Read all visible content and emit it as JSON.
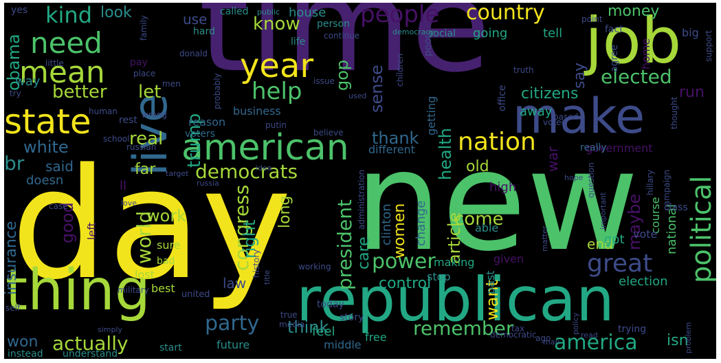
{
  "colors": {
    "background": "#000000",
    "yellow": "#f2e41c",
    "lime": "#a6d83a",
    "green": "#4cc26a",
    "teal": "#22a884",
    "cyan": "#2a8e8c",
    "blue": "#31688e",
    "indigo": "#3e4b89",
    "purple": "#46216f",
    "violet": "#471166"
  },
  "words": [
    {
      "text": "time",
      "color": "purple"
    },
    {
      "text": "new",
      "color": "green"
    },
    {
      "text": "day",
      "color": "yellow"
    },
    {
      "text": "republican",
      "color": "teal"
    },
    {
      "text": "job",
      "color": "lime"
    },
    {
      "text": "live",
      "color": "blue"
    },
    {
      "text": "make",
      "color": "indigo"
    },
    {
      "text": "thing",
      "color": "lime"
    },
    {
      "text": "american",
      "color": "green"
    },
    {
      "text": "state",
      "color": "yellow"
    },
    {
      "text": "mean",
      "color": "lime"
    },
    {
      "text": "need",
      "color": "green"
    },
    {
      "text": "year",
      "color": "yellow"
    },
    {
      "text": "people",
      "color": "violet"
    },
    {
      "text": "country",
      "color": "yellow"
    },
    {
      "text": "kind",
      "color": "teal"
    },
    {
      "text": "help",
      "color": "green"
    },
    {
      "text": "nation",
      "color": "yellow"
    },
    {
      "text": "elected",
      "color": "green"
    },
    {
      "text": "political",
      "color": "green"
    },
    {
      "text": "great",
      "color": "indigo"
    },
    {
      "text": "power",
      "color": "green"
    },
    {
      "text": "remember",
      "color": "green"
    },
    {
      "text": "america",
      "color": "teal"
    },
    {
      "text": "party",
      "color": "blue"
    },
    {
      "text": "actually",
      "color": "lime"
    },
    {
      "text": "democrats",
      "color": "lime"
    },
    {
      "text": "congress",
      "color": "lime"
    },
    {
      "text": "president",
      "color": "green"
    },
    {
      "text": "world",
      "color": "lime"
    },
    {
      "text": "work",
      "color": "lime"
    },
    {
      "text": "trump",
      "color": "teal"
    },
    {
      "text": "better",
      "color": "lime"
    },
    {
      "text": "let",
      "color": "lime"
    },
    {
      "text": "real",
      "color": "lime"
    },
    {
      "text": "white",
      "color": "blue"
    },
    {
      "text": "br",
      "color": "cyan"
    },
    {
      "text": "obama",
      "color": "teal"
    },
    {
      "text": "know",
      "color": "lime"
    },
    {
      "text": "look",
      "color": "cyan"
    },
    {
      "text": "use",
      "color": "indigo"
    },
    {
      "text": "gop",
      "color": "green"
    },
    {
      "text": "sense",
      "color": "indigo"
    },
    {
      "text": "thank",
      "color": "blue"
    },
    {
      "text": "health",
      "color": "teal"
    },
    {
      "text": "citizens",
      "color": "teal"
    },
    {
      "text": "say",
      "color": "indigo"
    },
    {
      "text": "money",
      "color": "green"
    },
    {
      "text": "going",
      "color": "teal"
    },
    {
      "text": "tell",
      "color": "teal"
    },
    {
      "text": "run",
      "color": "violet"
    },
    {
      "text": "away",
      "color": "teal"
    },
    {
      "text": "government",
      "color": "violet"
    },
    {
      "text": "insurance",
      "color": "blue"
    },
    {
      "text": "good",
      "color": "violet"
    },
    {
      "text": "right",
      "color": "teal"
    },
    {
      "text": "care",
      "color": "teal"
    },
    {
      "text": "article",
      "color": "lime"
    },
    {
      "text": "women",
      "color": "yellow"
    },
    {
      "text": "come",
      "color": "lime"
    },
    {
      "text": "control",
      "color": "teal"
    },
    {
      "text": "think",
      "color": "cyan"
    },
    {
      "text": "want",
      "color": "yellow"
    },
    {
      "text": "maybe",
      "color": "violet"
    },
    {
      "text": "end",
      "color": "lime"
    },
    {
      "text": "election",
      "color": "teal"
    },
    {
      "text": "isn",
      "color": "teal"
    },
    {
      "text": "law",
      "color": "indigo"
    },
    {
      "text": "won",
      "color": "blue"
    },
    {
      "text": "long",
      "color": "lime"
    },
    {
      "text": "old",
      "color": "lime"
    },
    {
      "text": "far",
      "color": "lime"
    },
    {
      "text": "said",
      "color": "blue"
    },
    {
      "text": "war",
      "color": "violet"
    },
    {
      "text": "high",
      "color": "violet"
    },
    {
      "text": "clinton",
      "color": "blue"
    },
    {
      "text": "change",
      "color": "blue"
    },
    {
      "text": "feel",
      "color": "teal"
    },
    {
      "text": "free",
      "color": "teal"
    },
    {
      "text": "future",
      "color": "cyan"
    },
    {
      "text": "middle",
      "color": "blue"
    },
    {
      "text": "start",
      "color": "cyan"
    },
    {
      "text": "understand",
      "color": "cyan"
    },
    {
      "text": "instead",
      "color": "cyan"
    },
    {
      "text": "lost",
      "color": "lime"
    },
    {
      "text": "best",
      "color": "lime"
    },
    {
      "text": "sure",
      "color": "lime"
    },
    {
      "text": "bad",
      "color": "lime"
    },
    {
      "text": "stop",
      "color": "cyan"
    },
    {
      "text": "past",
      "color": "cyan"
    },
    {
      "text": "making",
      "color": "teal"
    },
    {
      "text": "given",
      "color": "violet"
    },
    {
      "text": "got",
      "color": "teal"
    },
    {
      "text": "national",
      "color": "green"
    },
    {
      "text": "course",
      "color": "green"
    },
    {
      "text": "vote",
      "color": "indigo"
    },
    {
      "text": "class",
      "color": "indigo"
    },
    {
      "text": "able",
      "color": "cyan"
    },
    {
      "text": "getting",
      "color": "blue"
    },
    {
      "text": "different",
      "color": "blue"
    },
    {
      "text": "really",
      "color": "blue"
    },
    {
      "text": "business",
      "color": "blue"
    },
    {
      "text": "reason",
      "color": "blue"
    },
    {
      "text": "voters",
      "color": "blue"
    },
    {
      "text": "social",
      "color": "cyan"
    },
    {
      "text": "person",
      "color": "cyan"
    },
    {
      "text": "house",
      "color": "cyan"
    },
    {
      "text": "called",
      "color": "cyan"
    },
    {
      "text": "hard",
      "color": "cyan"
    },
    {
      "text": "life",
      "color": "cyan"
    },
    {
      "text": "donald",
      "color": "indigo"
    },
    {
      "text": "public",
      "color": "cyan"
    },
    {
      "text": "democracy",
      "color": "cyan"
    },
    {
      "text": "continue",
      "color": "indigo"
    },
    {
      "text": "poor",
      "color": "indigo"
    },
    {
      "text": "office",
      "color": "indigo"
    },
    {
      "text": "issue",
      "color": "indigo"
    },
    {
      "text": "used",
      "color": "indigo"
    },
    {
      "text": "children",
      "color": "indigo"
    },
    {
      "text": "truth",
      "color": "indigo"
    },
    {
      "text": "voted",
      "color": "indigo"
    },
    {
      "text": "based",
      "color": "indigo"
    },
    {
      "text": "believe",
      "color": "indigo"
    },
    {
      "text": "putin",
      "color": "indigo"
    },
    {
      "text": "point",
      "color": "indigo"
    },
    {
      "text": "fact",
      "color": "indigo"
    },
    {
      "text": "home",
      "color": "violet"
    },
    {
      "text": "big",
      "color": "indigo"
    },
    {
      "text": "support",
      "color": "indigo"
    },
    {
      "text": "agree",
      "color": "indigo"
    },
    {
      "text": "thought",
      "color": "indigo"
    },
    {
      "text": "hillary",
      "color": "indigo"
    },
    {
      "text": "campaign",
      "color": "indigo"
    },
    {
      "text": "question",
      "color": "indigo"
    },
    {
      "text": "important",
      "color": "indigo"
    },
    {
      "text": "hope",
      "color": "indigo"
    },
    {
      "text": "matter",
      "color": "indigo"
    },
    {
      "text": "policy",
      "color": "indigo"
    },
    {
      "text": "man",
      "color": "indigo"
    },
    {
      "text": "read",
      "color": "indigo"
    },
    {
      "text": "ago",
      "color": "indigo"
    },
    {
      "text": "trying",
      "color": "indigo"
    },
    {
      "text": "problem",
      "color": "indigo"
    },
    {
      "text": "democratic",
      "color": "indigo"
    },
    {
      "text": "tax",
      "color": "indigo"
    },
    {
      "text": "today",
      "color": "indigo"
    },
    {
      "text": "story",
      "color": "indigo"
    },
    {
      "text": "true",
      "color": "indigo"
    },
    {
      "text": "media",
      "color": "indigo"
    },
    {
      "text": "working",
      "color": "indigo"
    },
    {
      "text": "history",
      "color": "indigo"
    },
    {
      "text": "administration",
      "color": "indigo"
    },
    {
      "text": "idea",
      "color": "indigo"
    },
    {
      "text": "russia",
      "color": "indigo"
    },
    {
      "text": "target",
      "color": "indigo"
    },
    {
      "text": "russian",
      "color": "indigo"
    },
    {
      "text": "united",
      "color": "indigo"
    },
    {
      "text": "title",
      "color": "indigo"
    },
    {
      "text": "military",
      "color": "indigo"
    },
    {
      "text": "simply",
      "color": "indigo"
    },
    {
      "text": "self",
      "color": "indigo"
    },
    {
      "text": "case",
      "color": "indigo"
    },
    {
      "text": "love",
      "color": "indigo"
    },
    {
      "text": "left",
      "color": "violet"
    },
    {
      "text": "ll",
      "color": "violet"
    },
    {
      "text": "doesn",
      "color": "blue"
    },
    {
      "text": "school",
      "color": "indigo"
    },
    {
      "text": "rest",
      "color": "indigo"
    },
    {
      "text": "wrong",
      "color": "indigo"
    },
    {
      "text": "human",
      "color": "indigo"
    },
    {
      "text": "men",
      "color": "indigo"
    },
    {
      "text": "probably",
      "color": "indigo"
    },
    {
      "text": "pay",
      "color": "violet"
    },
    {
      "text": "place",
      "color": "indigo"
    },
    {
      "text": "way",
      "color": "cyan"
    },
    {
      "text": "try",
      "color": "indigo"
    },
    {
      "text": "little",
      "color": "indigo"
    },
    {
      "text": "yes",
      "color": "indigo"
    },
    {
      "text": "family",
      "color": "indigo"
    }
  ]
}
